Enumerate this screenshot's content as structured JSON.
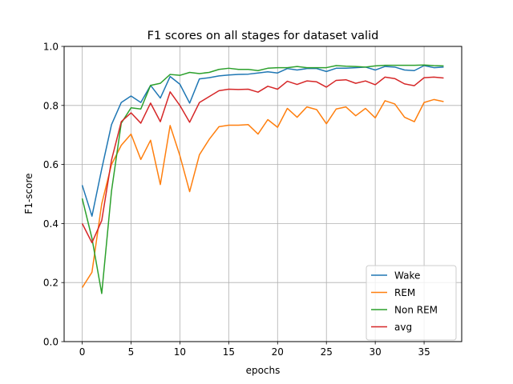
{
  "chart_data": {
    "type": "line",
    "title": "F1 scores on all stages for dataset valid",
    "xlabel": "epochs",
    "ylabel": "F1-score",
    "xlim": [
      -1.85,
      38.85
    ],
    "ylim": [
      0.0,
      1.0
    ],
    "xticks": [
      0,
      5,
      10,
      15,
      20,
      25,
      30,
      35
    ],
    "yticks": [
      0.0,
      0.2,
      0.4,
      0.6,
      0.8,
      1.0
    ],
    "ytick_labels": [
      "0.0",
      "0.2",
      "0.4",
      "0.6",
      "0.8",
      "1.0"
    ],
    "grid": true,
    "legend_position": "lower right",
    "x": [
      0,
      1,
      2,
      3,
      4,
      5,
      6,
      7,
      8,
      9,
      10,
      11,
      12,
      13,
      14,
      15,
      16,
      17,
      18,
      19,
      20,
      21,
      22,
      23,
      24,
      25,
      26,
      27,
      28,
      29,
      30,
      31,
      32,
      33,
      34,
      35,
      36,
      37
    ],
    "series": [
      {
        "name": "Wake",
        "color": "#1f77b4",
        "values": [
          0.53,
          0.425,
          0.585,
          0.735,
          0.81,
          0.832,
          0.81,
          0.868,
          0.825,
          0.898,
          0.872,
          0.808,
          0.89,
          0.894,
          0.9,
          0.903,
          0.905,
          0.906,
          0.91,
          0.914,
          0.91,
          0.925,
          0.92,
          0.925,
          0.925,
          0.915,
          0.926,
          0.926,
          0.928,
          0.93,
          0.92,
          0.932,
          0.93,
          0.92,
          0.918,
          0.935,
          0.928,
          0.93
        ]
      },
      {
        "name": "REM",
        "color": "#ff7f0e",
        "values": [
          0.183,
          0.235,
          0.467,
          0.6,
          0.665,
          0.703,
          0.617,
          0.682,
          0.532,
          0.732,
          0.63,
          0.508,
          0.633,
          0.685,
          0.728,
          0.733,
          0.733,
          0.735,
          0.703,
          0.752,
          0.726,
          0.79,
          0.76,
          0.795,
          0.786,
          0.738,
          0.788,
          0.795,
          0.765,
          0.79,
          0.758,
          0.816,
          0.805,
          0.76,
          0.745,
          0.81,
          0.82,
          0.813
        ]
      },
      {
        "name": "Non REM",
        "color": "#2ca02c",
        "values": [
          0.485,
          0.35,
          0.163,
          0.51,
          0.74,
          0.792,
          0.788,
          0.868,
          0.875,
          0.905,
          0.902,
          0.912,
          0.908,
          0.912,
          0.922,
          0.926,
          0.922,
          0.922,
          0.918,
          0.926,
          0.928,
          0.928,
          0.932,
          0.928,
          0.928,
          0.928,
          0.935,
          0.933,
          0.932,
          0.93,
          0.934,
          0.936,
          0.936,
          0.936,
          0.936,
          0.937,
          0.935,
          0.934
        ]
      },
      {
        "name": "avg",
        "color": "#d62728",
        "values": [
          0.4,
          0.335,
          0.41,
          0.615,
          0.745,
          0.775,
          0.74,
          0.808,
          0.745,
          0.846,
          0.8,
          0.743,
          0.81,
          0.83,
          0.85,
          0.855,
          0.854,
          0.855,
          0.845,
          0.865,
          0.855,
          0.882,
          0.871,
          0.883,
          0.88,
          0.862,
          0.885,
          0.887,
          0.875,
          0.883,
          0.87,
          0.896,
          0.891,
          0.873,
          0.867,
          0.894,
          0.896,
          0.893
        ]
      }
    ]
  }
}
